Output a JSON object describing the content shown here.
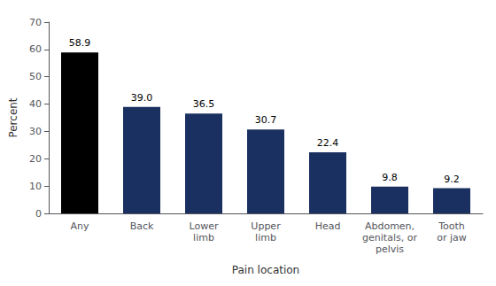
{
  "chart_data": {
    "type": "bar",
    "categories": [
      "Any",
      "Back",
      "Lower\nlimb",
      "Upper\nlimb",
      "Head",
      "Abdomen,\ngenitals, or\npelvis",
      "Tooth\nor jaw"
    ],
    "values": [
      58.9,
      39.0,
      36.5,
      30.7,
      22.4,
      9.8,
      9.2
    ],
    "value_labels": [
      "58.9",
      "39.0",
      "36.5",
      "30.7",
      "22.4",
      "9.8",
      "9.2"
    ],
    "colors": [
      "#000000",
      "#1a3060",
      "#1a3060",
      "#1a3060",
      "#1a3060",
      "#1a3060",
      "#1a3060"
    ],
    "xlabel": "Pain location",
    "ylabel": "Percent",
    "ylim": [
      0,
      70
    ],
    "yticks": [
      0,
      10,
      20,
      30,
      40,
      50,
      60,
      70
    ],
    "grid": false,
    "data_labels": true
  }
}
